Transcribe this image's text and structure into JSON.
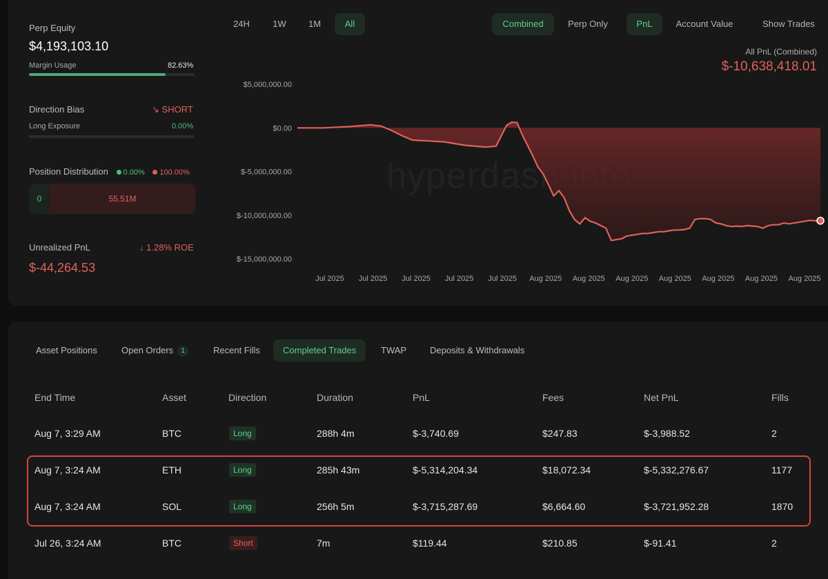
{
  "stats": {
    "equity_label": "Perp Equity",
    "equity_value": "$4,193,103.10",
    "margin_label": "Margin Usage",
    "margin_value": "82.63%",
    "margin_fraction": 0.8263,
    "bias_label": "Direction Bias",
    "bias_value": "SHORT",
    "long_exposure_label": "Long Exposure",
    "long_exposure_value": "0.00%",
    "distribution_label": "Position Distribution",
    "dist_long_pct": "0.00%",
    "dist_short_pct": "100.00%",
    "dist_long_value": "0",
    "dist_short_value": "55.51M",
    "upnl_label": "Unrealized PnL",
    "roe_value": "1.28% ROE",
    "upnl_value": "$-44,264.53"
  },
  "chart_controls": {
    "ranges": [
      "24H",
      "1W",
      "1M",
      "All"
    ],
    "combined": "Combined",
    "perp_only": "Perp Only",
    "pnl": "PnL",
    "account_value": "Account Value",
    "show_trades": "Show Trades"
  },
  "chart_data": {
    "type": "area",
    "title": "All PnL (Combined)",
    "current_value": "$-10,638,418.01",
    "ylim": [
      -15000000,
      5000000
    ],
    "y_ticks": [
      5000000,
      0,
      -5000000,
      -10000000,
      -15000000
    ],
    "y_tick_labels": [
      "$5,000,000.00",
      "$0.00",
      "$-5,000,000.00",
      "$-10,000,000.00",
      "$-15,000,000.00"
    ],
    "x_tick_labels": [
      "Jul 2025",
      "Jul 2025",
      "Jul 2025",
      "Jul 2025",
      "Jul 2025",
      "Aug 2025",
      "Aug 2025",
      "Aug 2025",
      "Aug 2025",
      "Aug 2025",
      "Aug 2025",
      "Aug 2025"
    ],
    "xlim": [
      0,
      100
    ],
    "watermark": "hyperdash.info",
    "series": [
      {
        "name": "PnL",
        "x": [
          0,
          5,
          10,
          14,
          16,
          18,
          20,
          22,
          25,
          28,
          32,
          36,
          38,
          40,
          41,
          42,
          43,
          44,
          45,
          46,
          47,
          48,
          49,
          50,
          51,
          52,
          53,
          54,
          55,
          56,
          57,
          58,
          59,
          60,
          61,
          62,
          63,
          64,
          65,
          66,
          67,
          68,
          69,
          70,
          71,
          72,
          73,
          74,
          75,
          76,
          77,
          78,
          79,
          80,
          81,
          82,
          83,
          84,
          85,
          86,
          87,
          88,
          89,
          90,
          91,
          92,
          93,
          94,
          95,
          96,
          97,
          98,
          99,
          100
        ],
        "values": [
          0,
          0,
          150000,
          350000,
          200000,
          -300000,
          -900000,
          -1400000,
          -1500000,
          -1600000,
          -2000000,
          -2200000,
          -2100000,
          300000,
          650000,
          600000,
          -800000,
          -2000000,
          -3200000,
          -4500000,
          -5300000,
          -6500000,
          -7800000,
          -7200000,
          -8000000,
          -9500000,
          -10500000,
          -11000000,
          -10300000,
          -10700000,
          -10900000,
          -11200000,
          -11500000,
          -12900000,
          -12800000,
          -12700000,
          -12400000,
          -12300000,
          -12200000,
          -12100000,
          -12100000,
          -12000000,
          -11900000,
          -11900000,
          -11800000,
          -11700000,
          -11700000,
          -11650000,
          -11500000,
          -10500000,
          -10400000,
          -10400000,
          -10500000,
          -10900000,
          -11000000,
          -11200000,
          -11300000,
          -11250000,
          -11300000,
          -11200000,
          -11250000,
          -11300000,
          -11500000,
          -11200000,
          -11100000,
          -11100000,
          -10900000,
          -11000000,
          -10900000,
          -10800000,
          -10700000,
          -10600000,
          -10650000,
          -10638418
        ]
      }
    ]
  },
  "tabs": {
    "asset_positions": "Asset Positions",
    "open_orders": "Open Orders",
    "open_orders_count": "1",
    "recent_fills": "Recent Fills",
    "completed_trades": "Completed Trades",
    "twap": "TWAP",
    "deposits": "Deposits & Withdrawals"
  },
  "table": {
    "headers": [
      "End Time",
      "Asset",
      "Direction",
      "Duration",
      "PnL",
      "Fees",
      "Net PnL",
      "Fills"
    ],
    "rows": [
      {
        "end_time": "Aug 7, 3:29 AM",
        "asset": "BTC",
        "direction": "Long",
        "duration": "288h 4m",
        "pnl": "$-3,740.69",
        "fees": "$247.83",
        "net_pnl": "$-3,988.52",
        "fills": "2"
      },
      {
        "end_time": "Aug 7, 3:24 AM",
        "asset": "ETH",
        "direction": "Long",
        "duration": "285h 43m",
        "pnl": "$-5,314,204.34",
        "fees": "$18,072.34",
        "net_pnl": "$-5,332,276.67",
        "fills": "1177"
      },
      {
        "end_time": "Aug 7, 3:24 AM",
        "asset": "SOL",
        "direction": "Long",
        "duration": "256h 5m",
        "pnl": "$-3,715,287.69",
        "fees": "$6,664.60",
        "net_pnl": "$-3,721,952.28",
        "fills": "1870"
      },
      {
        "end_time": "Jul 26, 3:24 AM",
        "asset": "BTC",
        "direction": "Short",
        "duration": "7m",
        "pnl": "$119.44",
        "fees": "$210.85",
        "net_pnl": "$-91.41",
        "fills": "2"
      }
    ]
  },
  "colors": {
    "accent_green": "#5fcf8f",
    "accent_red": "#e0625b",
    "highlight_border": "#d8443a"
  }
}
